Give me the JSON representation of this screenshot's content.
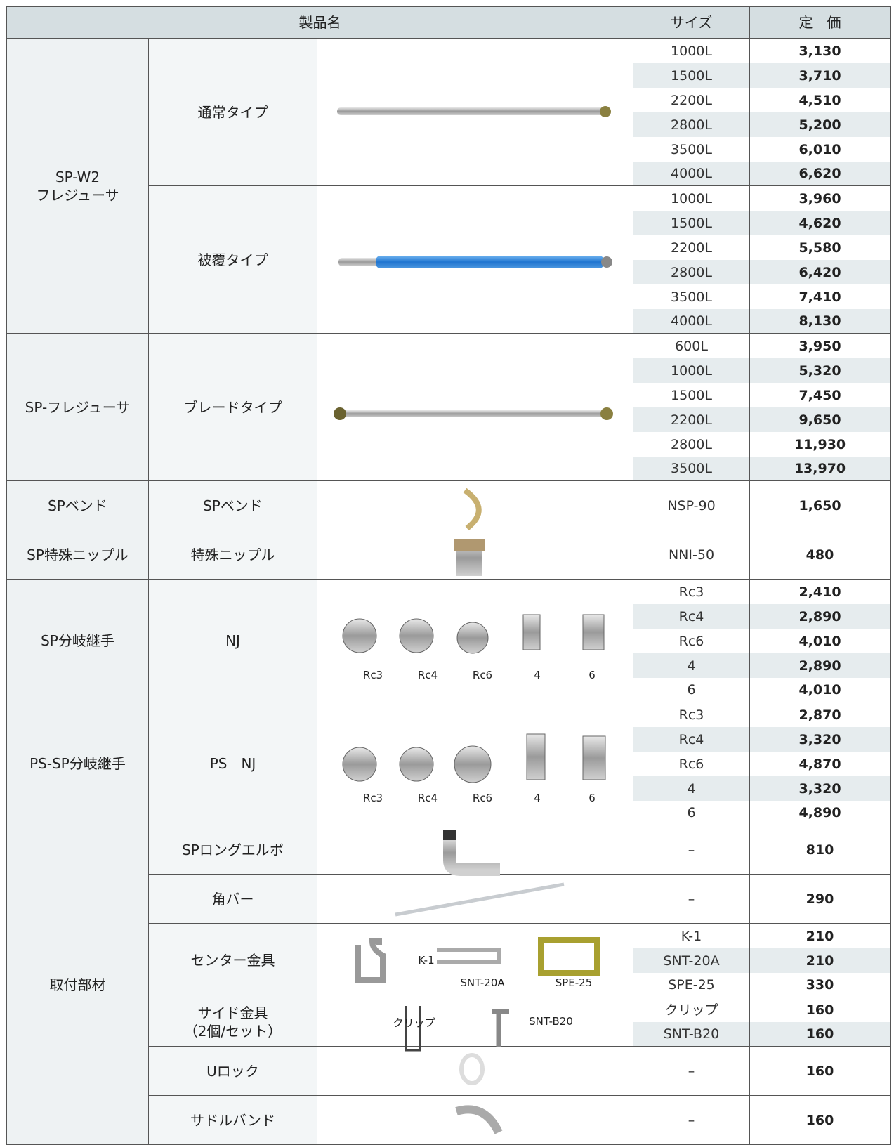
{
  "header": [
    "製品名",
    "サイズ",
    "定　価"
  ],
  "groups": [
    {
      "name": [
        "SP-W2",
        "フレジューサ"
      ],
      "products": [
        {
          "name": [
            "通常タイプ"
          ],
          "sizes": [
            "1000L",
            "1500L",
            "2200L",
            "2800L",
            "3500L",
            "4000L"
          ],
          "prices": [
            "3,130",
            "3,710",
            "4,510",
            "5,200",
            "6,010",
            "6,620"
          ]
        },
        {
          "name": [
            "被覆タイプ"
          ],
          "sizes": [
            "1000L",
            "1500L",
            "2200L",
            "2800L",
            "3500L",
            "4000L"
          ],
          "prices": [
            "3,960",
            "4,620",
            "5,580",
            "6,420",
            "7,410",
            "8,130"
          ]
        }
      ]
    },
    {
      "name": [
        "SP-フレジューサ"
      ],
      "products": [
        {
          "name": [
            "ブレードタイプ"
          ],
          "sizes": [
            "600L",
            "1000L",
            "1500L",
            "2200L",
            "2800L",
            "3500L"
          ],
          "prices": [
            "3,950",
            "5,320",
            "7,450",
            "9,650",
            "11,930",
            "13,970"
          ]
        }
      ]
    },
    {
      "name": [
        "SPベンド"
      ],
      "products": [
        {
          "name": [
            "SPベンド"
          ],
          "sizes": [
            "NSP-90"
          ],
          "prices": [
            "1,650"
          ]
        }
      ]
    },
    {
      "name": [
        "SP特殊ニップル"
      ],
      "products": [
        {
          "name": [
            "特殊ニップル"
          ],
          "sizes": [
            "NNI-50"
          ],
          "prices": [
            "480"
          ]
        }
      ]
    },
    {
      "name": [
        "SP分岐継手"
      ],
      "products": [
        {
          "name": [
            "NJ"
          ],
          "image_labels": [
            "Rc3",
            "Rc4",
            "Rc6",
            "4",
            "6"
          ],
          "sizes": [
            "Rc3",
            "Rc4",
            "Rc6",
            "4",
            "6"
          ],
          "prices": [
            "2,410",
            "2,890",
            "4,010",
            "2,890",
            "4,010"
          ]
        }
      ]
    },
    {
      "name": [
        "PS-SP分岐継手"
      ],
      "products": [
        {
          "name": [
            "PS　NJ"
          ],
          "image_labels": [
            "Rc3",
            "Rc4",
            "Rc6",
            "4",
            "6"
          ],
          "sizes": [
            "Rc3",
            "Rc4",
            "Rc6",
            "4",
            "6"
          ],
          "prices": [
            "2,870",
            "3,320",
            "4,870",
            "3,320",
            "4,890"
          ]
        }
      ]
    },
    {
      "name": [
        "取付部材"
      ],
      "products": [
        {
          "name": [
            "SPロングエルボ"
          ],
          "sizes": [
            "–"
          ],
          "prices": [
            "810"
          ]
        },
        {
          "name": [
            "角バー"
          ],
          "sizes": [
            "–"
          ],
          "prices": [
            "290"
          ]
        },
        {
          "name": [
            "センター金具"
          ],
          "image_labels": [
            "K-1",
            "SNT-20A",
            "SPE-25"
          ],
          "sizes": [
            "K-1",
            "SNT-20A",
            "SPE-25"
          ],
          "prices": [
            "210",
            "210",
            "330"
          ]
        },
        {
          "name": [
            "サイド金具",
            "（2個/セット）"
          ],
          "image_labels": [
            "クリップ",
            "SNT-B20"
          ],
          "sizes": [
            "クリップ",
            "SNT-B20"
          ],
          "prices": [
            "160",
            "160"
          ]
        },
        {
          "name": [
            "Uロック"
          ],
          "sizes": [
            "–"
          ],
          "prices": [
            "160"
          ]
        },
        {
          "name": [
            "サドルバンド"
          ],
          "sizes": [
            "–"
          ],
          "prices": [
            "160"
          ]
        }
      ]
    }
  ]
}
